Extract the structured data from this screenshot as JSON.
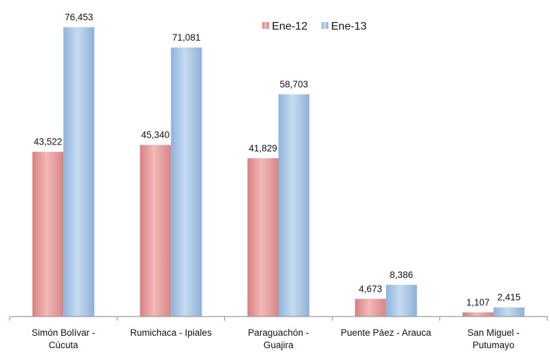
{
  "chart_data": {
    "type": "bar",
    "categories": [
      [
        "Simón Bolívar -",
        "Cúcuta"
      ],
      [
        "Rumichaca - Ipiales"
      ],
      [
        "Paraguachón -",
        "Guajira"
      ],
      [
        "Puente Páez - Arauca"
      ],
      [
        "San Miguel -",
        "Putumayo"
      ]
    ],
    "series": [
      {
        "name": "Ene-12",
        "color": "#e8a0a0",
        "values": [
          43522,
          45340,
          41829,
          4673,
          1107
        ],
        "labels": [
          "43,522",
          "45,340",
          "41,829",
          "4,673",
          "1,107"
        ]
      },
      {
        "name": "Ene-13",
        "color": "#a9c6e6",
        "values": [
          76453,
          71081,
          58703,
          8386,
          2415
        ],
        "labels": [
          "76,453",
          "71,081",
          "58,703",
          "8,386",
          "2,415"
        ]
      }
    ],
    "ylim": [
      0,
      80000
    ],
    "grid": false,
    "legend": "top-center"
  }
}
